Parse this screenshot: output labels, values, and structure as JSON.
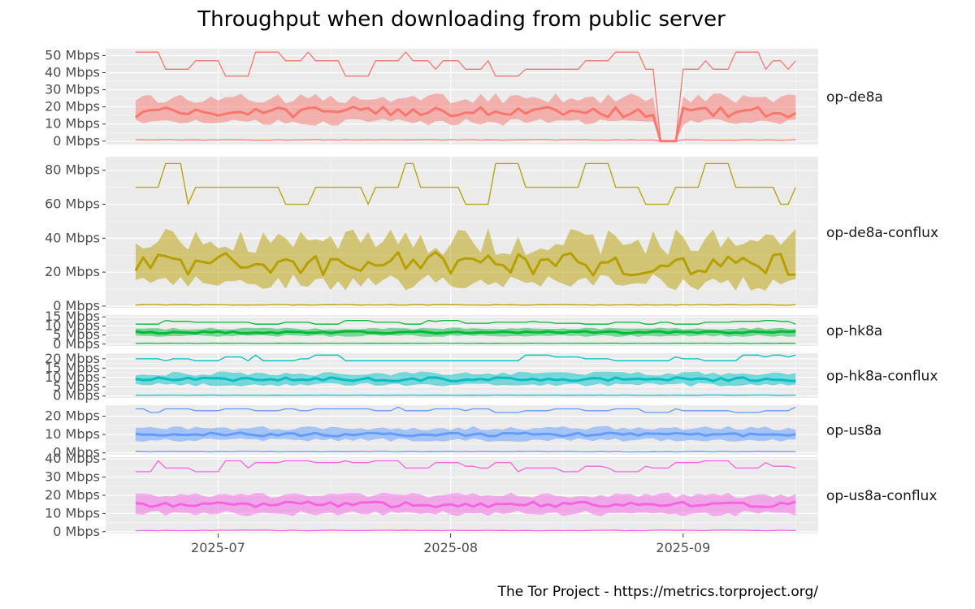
{
  "chart_data": {
    "type": "line",
    "title": "Throughput when downloading from public server",
    "caption": "The Tor Project - https://metrics.torproject.org/",
    "x_ticks": [
      {
        "date": "2025-07-01",
        "label": "2025-07"
      },
      {
        "date": "2025-08-01",
        "label": "2025-08"
      },
      {
        "date": "2025-09-01",
        "label": "2025-09"
      }
    ],
    "x_range": [
      "2025-06-16",
      "2025-09-19"
    ],
    "grid": true,
    "legend": "none",
    "facet_layout": "rows",
    "panels": [
      {
        "name": "op-de8a",
        "color": "#F8766D",
        "ylim": [
          -2,
          54
        ],
        "y_ticks": [
          {
            "value": 0,
            "label": "0 Mbps"
          },
          {
            "value": 10,
            "label": "10 Mbps"
          },
          {
            "value": 20,
            "label": "20 Mbps"
          },
          {
            "value": 30,
            "label": "30 Mbps"
          },
          {
            "value": 40,
            "label": "40 Mbps"
          },
          {
            "value": 50,
            "label": "50 Mbps"
          }
        ],
        "gap": [
          "2025-08-29",
          "2025-08-31"
        ],
        "median": 17,
        "median_var": 3,
        "q1": 11,
        "q1_var": 2,
        "q3": 25,
        "q3_var": 3,
        "max_levels": [
          47,
          52,
          47,
          42,
          47,
          38,
          47,
          42,
          52,
          47,
          42
        ],
        "min_level": 0.5
      },
      {
        "name": "op-de8a-conflux",
        "color": "#B79F00",
        "ylim": [
          -1,
          88
        ],
        "y_ticks": [
          {
            "value": 0,
            "label": "0 Mbps"
          },
          {
            "value": 20,
            "label": "20 Mbps"
          },
          {
            "value": 40,
            "label": "40 Mbps"
          },
          {
            "value": 60,
            "label": "60 Mbps"
          },
          {
            "value": 80,
            "label": "80 Mbps"
          }
        ],
        "gap": null,
        "median": 25,
        "median_var": 7,
        "q1": 14,
        "q1_var": 5,
        "q3": 38,
        "q3_var": 8,
        "max_levels": [
          84,
          70,
          60,
          70,
          84,
          70,
          60,
          70,
          84,
          70
        ],
        "min_level": 0.5
      },
      {
        "name": "op-hk8a",
        "color": "#00BA38",
        "ylim": [
          -1,
          16
        ],
        "y_ticks": [
          {
            "value": 0,
            "label": "0 Mbps"
          },
          {
            "value": 5,
            "label": "5 Mbps"
          },
          {
            "value": 10,
            "label": "10 Mbps"
          },
          {
            "value": 15,
            "label": "15 Mbps"
          }
        ],
        "gap": null,
        "median": 6.5,
        "median_var": 0.6,
        "q1": 4.5,
        "q1_var": 0.5,
        "q3": 8.5,
        "q3_var": 0.6,
        "max_levels": [
          11.5,
          12.5,
          11,
          12,
          13,
          12
        ],
        "min_level": 0.3
      },
      {
        "name": "op-hk8a-conflux",
        "color": "#00BFC4",
        "ylim": [
          -1,
          23
        ],
        "y_ticks": [
          {
            "value": 0,
            "label": "0 Mbps"
          },
          {
            "value": 5,
            "label": "5 Mbps"
          },
          {
            "value": 10,
            "label": "10 Mbps"
          },
          {
            "value": 15,
            "label": "15 Mbps"
          },
          {
            "value": 20,
            "label": "20 Mbps"
          }
        ],
        "gap": null,
        "median": 9,
        "median_var": 1,
        "q1": 6,
        "q1_var": 1,
        "q3": 12,
        "q3_var": 1.2,
        "max_levels": [
          19,
          21,
          19,
          20,
          22,
          19
        ],
        "min_level": 0.3
      },
      {
        "name": "op-us8a",
        "color": "#619CFF",
        "ylim": [
          -1,
          26
        ],
        "y_ticks": [
          {
            "value": 0,
            "label": "0 Mbps"
          },
          {
            "value": 10,
            "label": "10 Mbps"
          },
          {
            "value": 20,
            "label": "20 Mbps"
          }
        ],
        "gap": null,
        "median": 10,
        "median_var": 1,
        "q1": 7,
        "q1_var": 1,
        "q3": 13.5,
        "q3_var": 1.2,
        "max_levels": [
          23,
          25,
          23,
          24,
          22,
          24
        ],
        "min_level": 0.5
      },
      {
        "name": "op-us8a-conflux",
        "color": "#F564E3",
        "ylim": [
          -1,
          41
        ],
        "y_ticks": [
          {
            "value": 0,
            "label": "0 Mbps"
          },
          {
            "value": 10,
            "label": "10 Mbps"
          },
          {
            "value": 20,
            "label": "20 Mbps"
          },
          {
            "value": 30,
            "label": "30 Mbps"
          },
          {
            "value": 40,
            "label": "40 Mbps"
          }
        ],
        "gap": null,
        "median": 15,
        "median_var": 1.5,
        "q1": 10,
        "q1_var": 1.5,
        "q3": 20,
        "q3_var": 1.5,
        "max_levels": [
          35,
          38,
          33,
          36,
          39,
          35
        ],
        "min_level": 0.5
      }
    ]
  }
}
